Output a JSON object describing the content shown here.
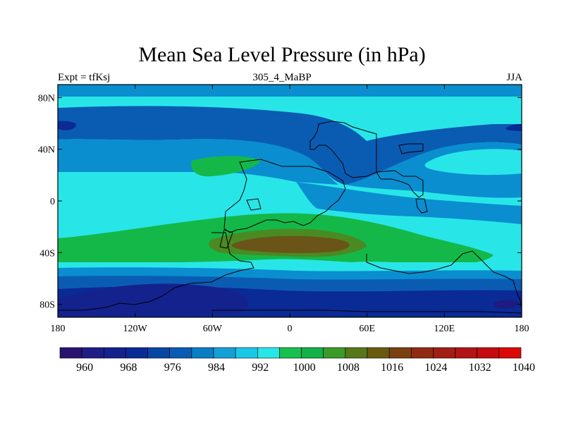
{
  "title": "Mean Sea Level Pressure (in hPa)",
  "subtitle_left": "Expt = tfKsj",
  "subtitle_center": "305_4_MaBP",
  "subtitle_right": "JJA",
  "map": {
    "lon_range": [
      -180,
      180
    ],
    "lat_range": [
      -90,
      90
    ],
    "x_ticks": [
      {
        "lon": -180,
        "label": "180"
      },
      {
        "lon": -120,
        "label": "120W"
      },
      {
        "lon": -60,
        "label": "60W"
      },
      {
        "lon": 0,
        "label": "0"
      },
      {
        "lon": 60,
        "label": "60E"
      },
      {
        "lon": 120,
        "label": "120E"
      },
      {
        "lon": 180,
        "label": "180"
      }
    ],
    "y_ticks": [
      {
        "lat": 80,
        "label": "80N"
      },
      {
        "lat": 40,
        "label": "40N"
      },
      {
        "lat": 0,
        "label": "0"
      },
      {
        "lat": -40,
        "label": "40S"
      },
      {
        "lat": -80,
        "label": "80S"
      }
    ]
  },
  "colorbar": {
    "colors": [
      "#2a1470",
      "#1e1e86",
      "#14228e",
      "#0a2a96",
      "#0846a4",
      "#0a5cb2",
      "#0a7ec4",
      "#14a0d6",
      "#1ac8e6",
      "#28e6e8",
      "#18c050",
      "#14b048",
      "#3a9a2a",
      "#567818",
      "#6a5a10",
      "#7a4010",
      "#902a12",
      "#a01e14",
      "#b01414",
      "#c40c10",
      "#dc0808"
    ],
    "labels": [
      {
        "index": 2,
        "text": "960"
      },
      {
        "index": 4,
        "text": "968"
      },
      {
        "index": 6,
        "text": "976"
      },
      {
        "index": 8,
        "text": "984"
      },
      {
        "index": 10,
        "text": "992"
      },
      {
        "index": 12,
        "text": "1000"
      },
      {
        "index": 14,
        "text": "1008"
      },
      {
        "index": 16,
        "text": "1016"
      },
      {
        "index": 18,
        "text": "1024"
      },
      {
        "index": 20,
        "text": "1032"
      },
      {
        "index": 22,
        "text": "1040"
      }
    ]
  },
  "field_colors": {
    "c960": "#1e1a7e",
    "c968": "#14228e",
    "c976": "#0a2a96",
    "c984": "#0a5cb2",
    "c992": "#0a8ed0",
    "c1000": "#28e6e8",
    "c1008": "#14b848",
    "c1016": "#4a8a22",
    "c1024": "#6a5418"
  }
}
